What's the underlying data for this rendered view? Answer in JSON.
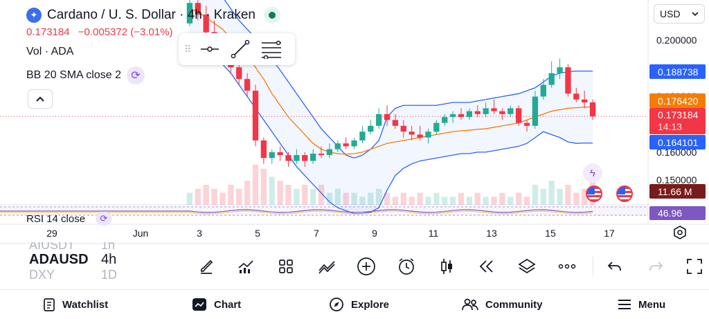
{
  "header": {
    "symbol_title": "Cardano / U. S. Dollar · 4h · Kraken",
    "price": "0.173184",
    "change": "−0.005372 (−3.01%)",
    "volume_label": "Vol · ADA",
    "indicator_label": "BB 20 SMA close 2",
    "rsi_label": "RSI 14 close"
  },
  "currency": {
    "selected": "USD"
  },
  "price_axis": {
    "ticks": [
      "0.200000",
      "0.180000",
      "0.160000",
      "0.150000"
    ],
    "badges": {
      "bb_upper": "0.188738",
      "sma": "0.176420",
      "last_price": "0.173184",
      "countdown": "14:13",
      "bb_lower": "0.164101",
      "volume": "11.66 M",
      "rsi": "46.96"
    }
  },
  "time_axis": {
    "ticks": [
      "29",
      "Jun",
      "3",
      "5",
      "7",
      "9",
      "11",
      "13",
      "15",
      "17"
    ]
  },
  "symbol_picker": {
    "symbols": [
      "AIUSDT",
      "ADAUSD",
      "DXY"
    ],
    "timeframes": [
      "1h",
      "4h",
      "1D"
    ]
  },
  "toolbar": {
    "tools": [
      "brush-icon",
      "indicators-icon",
      "layouts-icon",
      "trend-line-icon",
      "add-icon",
      "alert-icon",
      "candle-type-icon",
      "replay-icon",
      "layers-icon",
      "more-icon",
      "undo-icon",
      "redo-icon",
      "fullscreen-icon"
    ]
  },
  "bottom_nav": {
    "watchlist": "Watchlist",
    "chart": "Chart",
    "explore": "Explore",
    "community": "Community",
    "menu": "Menu"
  },
  "colors": {
    "up": "#22ab94",
    "down": "#f23645",
    "bb_band": "#2962ff",
    "sma": "#f57c00",
    "rsi": "#7e57c2"
  },
  "chart_data": {
    "type": "candlestick",
    "timeframe": "4h",
    "y_range": [
      0.143,
      0.213
    ],
    "ohlc": [
      [
        0.205,
        0.215,
        0.204,
        0.212
      ],
      [
        0.212,
        0.214,
        0.206,
        0.208
      ],
      [
        0.208,
        0.211,
        0.2,
        0.202
      ],
      [
        0.202,
        0.206,
        0.196,
        0.198
      ],
      [
        0.198,
        0.2,
        0.192,
        0.195
      ],
      [
        0.195,
        0.197,
        0.188,
        0.19
      ],
      [
        0.19,
        0.192,
        0.184,
        0.186
      ],
      [
        0.186,
        0.188,
        0.18,
        0.182
      ],
      [
        0.182,
        0.184,
        0.163,
        0.165
      ],
      [
        0.165,
        0.166,
        0.157,
        0.159
      ],
      [
        0.159,
        0.162,
        0.157,
        0.161
      ],
      [
        0.161,
        0.163,
        0.158,
        0.16
      ],
      [
        0.16,
        0.161,
        0.156,
        0.158
      ],
      [
        0.158,
        0.162,
        0.157,
        0.16
      ],
      [
        0.16,
        0.161,
        0.156,
        0.158
      ],
      [
        0.158,
        0.162,
        0.157,
        0.1605
      ],
      [
        0.1605,
        0.163,
        0.159,
        0.16
      ],
      [
        0.16,
        0.164,
        0.159,
        0.162
      ],
      [
        0.162,
        0.165,
        0.161,
        0.164
      ],
      [
        0.164,
        0.166,
        0.162,
        0.163
      ],
      [
        0.163,
        0.166,
        0.162,
        0.165
      ],
      [
        0.165,
        0.17,
        0.164,
        0.168
      ],
      [
        0.168,
        0.172,
        0.167,
        0.17
      ],
      [
        0.17,
        0.176,
        0.169,
        0.174
      ],
      [
        0.174,
        0.177,
        0.17,
        0.172
      ],
      [
        0.172,
        0.174,
        0.169,
        0.17
      ],
      [
        0.17,
        0.172,
        0.166,
        0.168
      ],
      [
        0.168,
        0.17,
        0.165,
        0.167
      ],
      [
        0.167,
        0.17,
        0.165,
        0.166
      ],
      [
        0.166,
        0.169,
        0.164,
        0.168
      ],
      [
        0.168,
        0.172,
        0.167,
        0.171
      ],
      [
        0.171,
        0.174,
        0.17,
        0.173
      ],
      [
        0.173,
        0.175,
        0.171,
        0.174
      ],
      [
        0.174,
        0.176,
        0.172,
        0.173
      ],
      [
        0.173,
        0.176,
        0.172,
        0.175
      ],
      [
        0.175,
        0.177,
        0.173,
        0.174
      ],
      [
        0.174,
        0.178,
        0.173,
        0.176
      ],
      [
        0.176,
        0.179,
        0.174,
        0.175
      ],
      [
        0.175,
        0.176,
        0.172,
        0.174
      ],
      [
        0.174,
        0.177,
        0.173,
        0.176
      ],
      [
        0.176,
        0.177,
        0.17,
        0.171
      ],
      [
        0.171,
        0.172,
        0.168,
        0.17
      ],
      [
        0.17,
        0.182,
        0.169,
        0.18
      ],
      [
        0.18,
        0.186,
        0.179,
        0.184
      ],
      [
        0.184,
        0.192,
        0.183,
        0.188
      ],
      [
        0.188,
        0.193,
        0.186,
        0.19
      ],
      [
        0.19,
        0.191,
        0.18,
        0.181
      ],
      [
        0.181,
        0.183,
        0.178,
        0.179
      ],
      [
        0.179,
        0.182,
        0.176,
        0.178
      ],
      [
        0.178,
        0.179,
        0.172,
        0.1732
      ]
    ],
    "bb_upper": [
      0.22,
      0.22,
      0.218,
      0.216,
      0.214,
      0.21,
      0.206,
      0.203,
      0.2,
      0.197,
      0.193,
      0.189,
      0.185,
      0.181,
      0.177,
      0.173,
      0.169,
      0.166,
      0.163,
      0.16,
      0.159,
      0.16,
      0.162,
      0.165,
      0.173,
      0.176,
      0.177,
      0.177,
      0.177,
      0.177,
      0.177,
      0.1775,
      0.178,
      0.178,
      0.178,
      0.1785,
      0.179,
      0.1795,
      0.18,
      0.1805,
      0.181,
      0.182,
      0.183,
      0.185,
      0.187,
      0.188,
      0.1885,
      0.1887,
      0.1887,
      0.1887
    ],
    "bb_lower": [
      0.199,
      0.198,
      0.196,
      0.194,
      0.191,
      0.188,
      0.184,
      0.18,
      0.176,
      0.172,
      0.168,
      0.164,
      0.16,
      0.156,
      0.153,
      0.15,
      0.147,
      0.144,
      0.142,
      0.141,
      0.14,
      0.14,
      0.1405,
      0.142,
      0.148,
      0.153,
      0.1555,
      0.157,
      0.158,
      0.1585,
      0.159,
      0.1595,
      0.16,
      0.1605,
      0.1605,
      0.161,
      0.161,
      0.1615,
      0.162,
      0.1625,
      0.163,
      0.164,
      0.166,
      0.168,
      0.167,
      0.166,
      0.1645,
      0.164,
      0.1641,
      0.1641
    ],
    "sma": [
      0.21,
      0.209,
      0.207,
      0.205,
      0.203,
      0.2,
      0.197,
      0.194,
      0.19,
      0.186,
      0.181,
      0.177,
      0.173,
      0.17,
      0.167,
      0.164,
      0.162,
      0.161,
      0.1605,
      0.1603,
      0.1605,
      0.161,
      0.162,
      0.163,
      0.164,
      0.1645,
      0.165,
      0.1655,
      0.166,
      0.1665,
      0.167,
      0.1675,
      0.168,
      0.1683,
      0.1685,
      0.1688,
      0.169,
      0.1695,
      0.17,
      0.1705,
      0.171,
      0.172,
      0.173,
      0.174,
      0.175,
      0.1755,
      0.176,
      0.1762,
      0.1764,
      0.1764
    ],
    "volume": [
      0.3,
      0.4,
      0.5,
      0.4,
      0.3,
      0.5,
      0.4,
      0.6,
      1.0,
      0.9,
      0.7,
      0.6,
      0.5,
      0.4,
      0.5,
      0.4,
      0.5,
      0.3,
      0.4,
      0.3,
      0.3,
      0.2,
      0.3,
      0.4,
      0.3,
      0.2,
      0.3,
      0.2,
      0.3,
      0.2,
      0.3,
      0.2,
      0.2,
      0.3,
      0.2,
      0.3,
      0.2,
      0.2,
      0.3,
      0.2,
      0.3,
      0.2,
      0.5,
      0.4,
      0.6,
      0.4,
      0.5,
      0.3,
      0.4,
      0.6
    ]
  }
}
